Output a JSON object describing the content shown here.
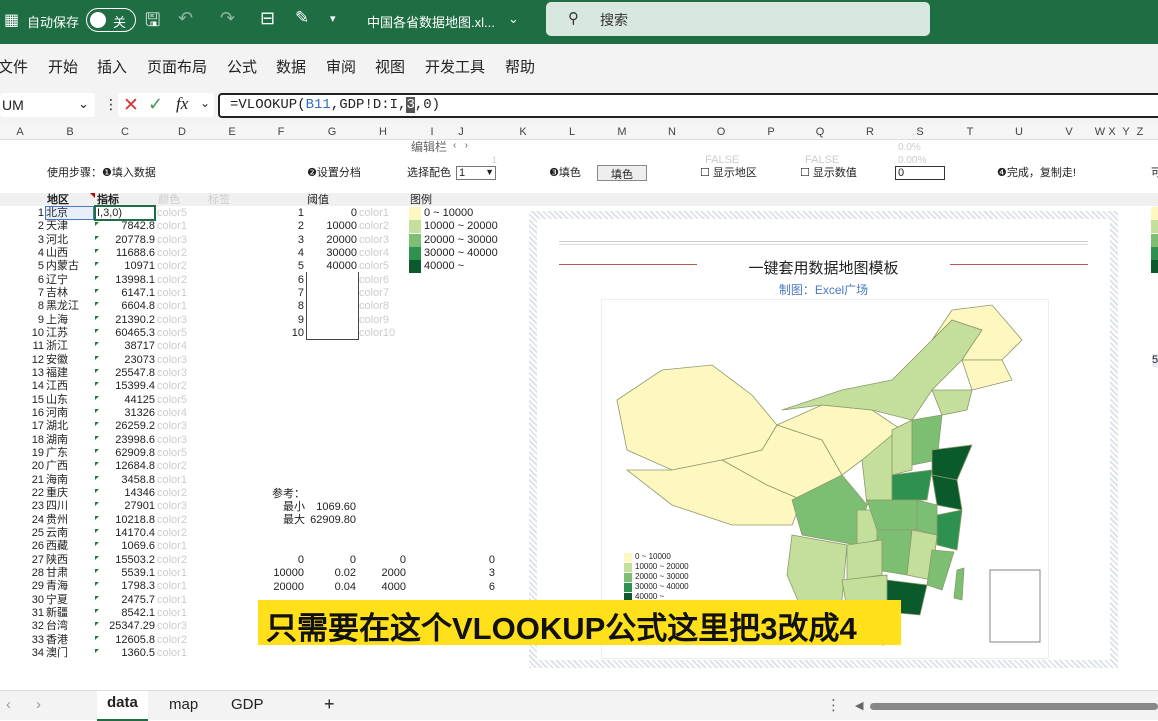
{
  "titlebar": {
    "autosave": "自动保存",
    "toggle": "关",
    "filename": "中国各省数据地图.xl...",
    "search": "搜索"
  },
  "menu": [
    "文件",
    "开始",
    "插入",
    "页面布局",
    "公式",
    "数据",
    "审阅",
    "视图",
    "开发工具",
    "帮助"
  ],
  "formula": {
    "namebox": "UM",
    "text_pre": "=VLOOKUP(",
    "ref": "B11",
    "text_mid": ",GDP!D:I,",
    "cursor": "3",
    "text_post": ",0)",
    "tooltip": "编辑栏"
  },
  "columns": [
    "A",
    "B",
    "C",
    "D",
    "E",
    "F",
    "G",
    "H",
    "I",
    "J",
    "K",
    "L",
    "M",
    "N",
    "O",
    "P",
    "Q",
    "R",
    "S",
    "T",
    "U",
    "V",
    "W",
    "X",
    "Y",
    "Z"
  ],
  "steps": {
    "step1": "使用步骤：❶填入数据",
    "step2": "❷设置分档",
    "pick_color": "选择配色",
    "pick_value": "1",
    "step3": "❸填色",
    "fill_button": "填色",
    "show_region": "显示地区",
    "show_value": "显示数值",
    "false1": "FALSE",
    "false2": "FALSE",
    "pct1": "0.0%",
    "pct2": "0.00%",
    "input_value": "0",
    "step4": "❹完成，复制走!",
    "one": "1"
  },
  "headers": {
    "region": "地区",
    "indicator": "指标",
    "color": "颜色",
    "label": "标签",
    "threshold": "阈值",
    "legend": "图例"
  },
  "editing_cell": "I,3,0)",
  "rows": [
    [
      "1",
      "北京",
      "",
      "color5"
    ],
    [
      "2",
      "天津",
      "7842.8",
      "color1"
    ],
    [
      "3",
      "河北",
      "20778.9",
      "color3"
    ],
    [
      "4",
      "山西",
      "11688.6",
      "color2"
    ],
    [
      "5",
      "内蒙古",
      "10971",
      "color2"
    ],
    [
      "6",
      "辽宁",
      "13998.1",
      "color2"
    ],
    [
      "7",
      "吉林",
      "6147.1",
      "color1"
    ],
    [
      "8",
      "黑龙江",
      "6604.8",
      "color1"
    ],
    [
      "9",
      "上海",
      "21390.2",
      "color3"
    ],
    [
      "10",
      "江苏",
      "60465.3",
      "color5"
    ],
    [
      "11",
      "浙江",
      "38717",
      "color4"
    ],
    [
      "12",
      "安徽",
      "23073",
      "color3"
    ],
    [
      "13",
      "福建",
      "25547.8",
      "color3"
    ],
    [
      "14",
      "江西",
      "15399.4",
      "color2"
    ],
    [
      "15",
      "山东",
      "44125",
      "color5"
    ],
    [
      "16",
      "河南",
      "31326",
      "color4"
    ],
    [
      "17",
      "湖北",
      "26259.2",
      "color3"
    ],
    [
      "18",
      "湖南",
      "23998.6",
      "color3"
    ],
    [
      "19",
      "广东",
      "62909.8",
      "color5"
    ],
    [
      "20",
      "广西",
      "12684.8",
      "color2"
    ],
    [
      "21",
      "海南",
      "3458.8",
      "color1"
    ],
    [
      "22",
      "重庆",
      "14346",
      "color2"
    ],
    [
      "23",
      "四川",
      "27901",
      "color3"
    ],
    [
      "24",
      "贵州",
      "10218.8",
      "color2"
    ],
    [
      "25",
      "云南",
      "14170.4",
      "color2"
    ],
    [
      "26",
      "西藏",
      "1069.6",
      "color1"
    ],
    [
      "27",
      "陕西",
      "15503.2",
      "color2"
    ],
    [
      "28",
      "甘肃",
      "5539.1",
      "color1"
    ],
    [
      "29",
      "青海",
      "1798.3",
      "color1"
    ],
    [
      "30",
      "宁夏",
      "2475.7",
      "color1"
    ],
    [
      "31",
      "新疆",
      "8542.1",
      "color1"
    ],
    [
      "32",
      "台湾",
      "25347.29",
      "color3"
    ],
    [
      "33",
      "香港",
      "12605.8",
      "color2"
    ],
    [
      "34",
      "澳门",
      "1360.5",
      "color1"
    ]
  ],
  "thresholds": [
    [
      "1",
      "0",
      "color1"
    ],
    [
      "2",
      "10000",
      "color2"
    ],
    [
      "3",
      "20000",
      "color3"
    ],
    [
      "4",
      "30000",
      "color4"
    ],
    [
      "5",
      "40000",
      "color5"
    ],
    [
      "6",
      "",
      "color6"
    ],
    [
      "7",
      "",
      "color7"
    ],
    [
      "8",
      "",
      "color8"
    ],
    [
      "9",
      "",
      "color9"
    ],
    [
      "10",
      "",
      "color10"
    ]
  ],
  "legend": [
    "0 ~ 10000",
    "10000 ~ 20000",
    "20000 ~ 30000",
    "30000 ~ 40000",
    "40000 ~"
  ],
  "palette": [
    "#fff7c0",
    "#c3df9b",
    "#7dbf72",
    "#2f9150",
    "#0b5a2c"
  ],
  "reference": {
    "title": "参考：",
    "min_label": "最小",
    "min": "1069.60",
    "max_label": "最大",
    "max": "62909.80"
  },
  "lower_table": [
    [
      "0",
      "0",
      "0",
      "0"
    ],
    [
      "10000",
      "0.02",
      "2000",
      "3"
    ],
    [
      "20000",
      "0.04",
      "4000",
      "6"
    ]
  ],
  "chart": {
    "title": "一键套用数据地图模板",
    "subtitle": "制图：Excel广场"
  },
  "caption": "只需要在这个VLOOKUP公式这里把3改成4",
  "sheets": [
    "data",
    "map",
    "GDP"
  ],
  "add_sheet": "+",
  "side_value": "5"
}
